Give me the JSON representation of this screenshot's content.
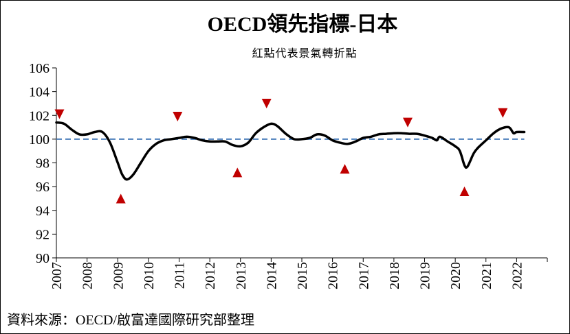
{
  "chart_data": {
    "type": "line",
    "title": "OECD領先指標-日本",
    "subtitle": "紅點代表景氣轉折點",
    "source": "資料來源：OECD/啟富達國際研究部整理",
    "xlabel": "",
    "ylabel": "",
    "ylim": [
      90,
      106
    ],
    "yticks": [
      90,
      92,
      94,
      96,
      98,
      100,
      102,
      104,
      106
    ],
    "xlim": [
      2007,
      2023
    ],
    "xticks": [
      "2007",
      "2008",
      "2009",
      "2010",
      "2011",
      "2012",
      "2013",
      "2014",
      "2015",
      "2016",
      "2017",
      "2018",
      "2019",
      "2020",
      "2021",
      "2022"
    ],
    "reference_line": {
      "y": 100,
      "style": "dashed",
      "color": "#4a7ebb"
    },
    "series": [
      {
        "color": "#000000",
        "points": [
          [
            2007.0,
            101.4
          ],
          [
            2007.25,
            101.3
          ],
          [
            2007.5,
            100.8
          ],
          [
            2007.75,
            100.4
          ],
          [
            2008.0,
            100.4
          ],
          [
            2008.25,
            100.6
          ],
          [
            2008.5,
            100.6
          ],
          [
            2008.75,
            99.7
          ],
          [
            2009.0,
            98.0
          ],
          [
            2009.15,
            97.0
          ],
          [
            2009.3,
            96.6
          ],
          [
            2009.5,
            97.0
          ],
          [
            2009.75,
            98.0
          ],
          [
            2010.0,
            99.0
          ],
          [
            2010.25,
            99.6
          ],
          [
            2010.5,
            99.9
          ],
          [
            2010.75,
            100.0
          ],
          [
            2011.0,
            100.1
          ],
          [
            2011.25,
            100.2
          ],
          [
            2011.5,
            100.1
          ],
          [
            2011.75,
            99.9
          ],
          [
            2012.0,
            99.8
          ],
          [
            2012.25,
            99.8
          ],
          [
            2012.5,
            99.8
          ],
          [
            2012.75,
            99.5
          ],
          [
            2013.0,
            99.4
          ],
          [
            2013.25,
            99.7
          ],
          [
            2013.5,
            100.5
          ],
          [
            2013.75,
            101.0
          ],
          [
            2014.0,
            101.3
          ],
          [
            2014.2,
            101.1
          ],
          [
            2014.5,
            100.4
          ],
          [
            2014.75,
            100.0
          ],
          [
            2015.0,
            100.0
          ],
          [
            2015.25,
            100.1
          ],
          [
            2015.5,
            100.4
          ],
          [
            2015.75,
            100.3
          ],
          [
            2016.0,
            99.9
          ],
          [
            2016.25,
            99.7
          ],
          [
            2016.5,
            99.6
          ],
          [
            2016.75,
            99.8
          ],
          [
            2017.0,
            100.1
          ],
          [
            2017.25,
            100.2
          ],
          [
            2017.5,
            100.4
          ],
          [
            2017.75,
            100.45
          ],
          [
            2018.0,
            100.5
          ],
          [
            2018.25,
            100.5
          ],
          [
            2018.5,
            100.45
          ],
          [
            2018.75,
            100.45
          ],
          [
            2019.0,
            100.3
          ],
          [
            2019.25,
            100.1
          ],
          [
            2019.4,
            99.9
          ],
          [
            2019.5,
            100.2
          ],
          [
            2019.75,
            99.8
          ],
          [
            2020.0,
            99.4
          ],
          [
            2020.15,
            99.0
          ],
          [
            2020.3,
            97.8
          ],
          [
            2020.4,
            97.7
          ],
          [
            2020.6,
            98.8
          ],
          [
            2020.75,
            99.3
          ],
          [
            2021.0,
            99.9
          ],
          [
            2021.25,
            100.5
          ],
          [
            2021.5,
            100.9
          ],
          [
            2021.75,
            101.0
          ],
          [
            2021.9,
            100.5
          ],
          [
            2022.0,
            100.6
          ],
          [
            2022.25,
            100.6
          ]
        ]
      }
    ],
    "turning_points": [
      {
        "x": 2007.1,
        "y": 102.1,
        "kind": "peak"
      },
      {
        "x": 2009.1,
        "y": 95.0,
        "kind": "trough"
      },
      {
        "x": 2010.95,
        "y": 101.9,
        "kind": "peak"
      },
      {
        "x": 2012.9,
        "y": 97.2,
        "kind": "trough"
      },
      {
        "x": 2013.85,
        "y": 103.0,
        "kind": "peak"
      },
      {
        "x": 2016.4,
        "y": 97.5,
        "kind": "trough"
      },
      {
        "x": 2018.45,
        "y": 101.4,
        "kind": "peak"
      },
      {
        "x": 2020.3,
        "y": 95.6,
        "kind": "trough"
      },
      {
        "x": 2021.55,
        "y": 102.2,
        "kind": "peak"
      }
    ],
    "marker_color": "#c00000",
    "grid": false
  }
}
